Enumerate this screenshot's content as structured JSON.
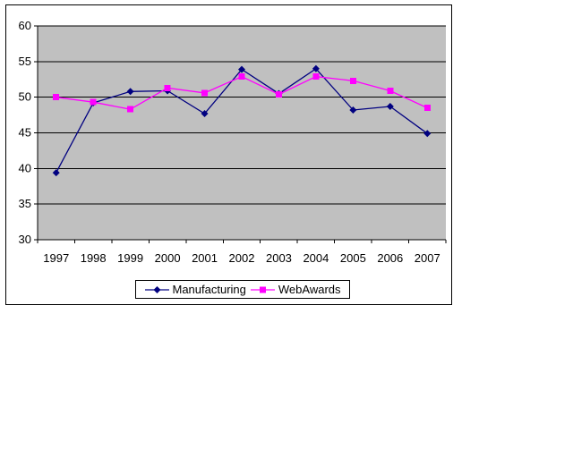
{
  "chart_data": {
    "type": "line",
    "title": "",
    "xlabel": "",
    "ylabel": "",
    "categories": [
      "1997",
      "1998",
      "1999",
      "2000",
      "2001",
      "2002",
      "2003",
      "2004",
      "2005",
      "2006",
      "2007"
    ],
    "series": [
      {
        "name": "Manufacturing",
        "color": "#000080",
        "marker": "diamond",
        "values": [
          39.4,
          49.2,
          50.8,
          50.9,
          47.7,
          53.9,
          50.5,
          54.0,
          48.2,
          48.7,
          44.9
        ]
      },
      {
        "name": "WebAwards",
        "color": "#ff00ff",
        "marker": "square",
        "values": [
          50.0,
          49.3,
          48.3,
          51.3,
          50.6,
          52.9,
          50.4,
          52.9,
          52.3,
          50.9,
          48.5
        ]
      }
    ],
    "ylim": [
      30,
      60
    ],
    "yticks": [
      60,
      55,
      50,
      45,
      40,
      35,
      30
    ],
    "grid": true,
    "legend_position": "bottom",
    "plot_background": "#c0c0c0",
    "gridline_color": "#000000",
    "axis_color": "#000000",
    "text_color": "#000000",
    "chart_background": "#ffffff"
  }
}
